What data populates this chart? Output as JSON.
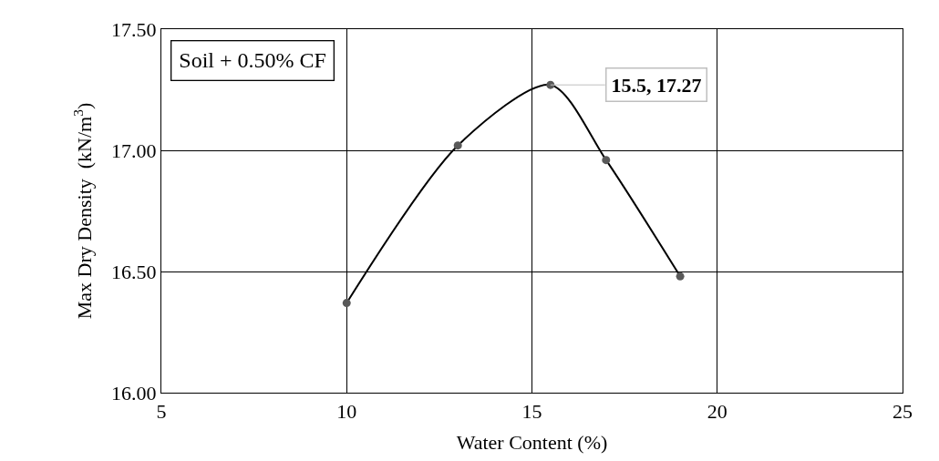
{
  "chart_data": {
    "type": "line",
    "xlabel": "Water Content (%)",
    "ylabel": "Max Dry Density  (kN/m$^{3}$)",
    "x": [
      10,
      13,
      15.5,
      17,
      19
    ],
    "series": [
      {
        "color": "#000000",
        "values": [
          16.37,
          17.02,
          17.27,
          16.96,
          16.48
        ]
      }
    ],
    "xlim": [
      5,
      25
    ],
    "xticks": [
      5,
      10,
      15,
      20,
      25
    ],
    "ylim": [
      16.0,
      17.5
    ],
    "yticks": [
      {
        "value": 16.0,
        "label": "16.00"
      },
      {
        "value": 16.5,
        "label": "16.50"
      },
      {
        "value": 17.0,
        "label": "17.00"
      },
      {
        "value": 17.5,
        "label": "17.50"
      }
    ],
    "grid": true,
    "marker": "circle",
    "line_style": "solid",
    "legend": false,
    "annotations": [
      "Soil + 0.50% CF",
      {
        "text": "15.5, 17.27",
        "x": 15.5,
        "y": 17.27
      }
    ]
  }
}
